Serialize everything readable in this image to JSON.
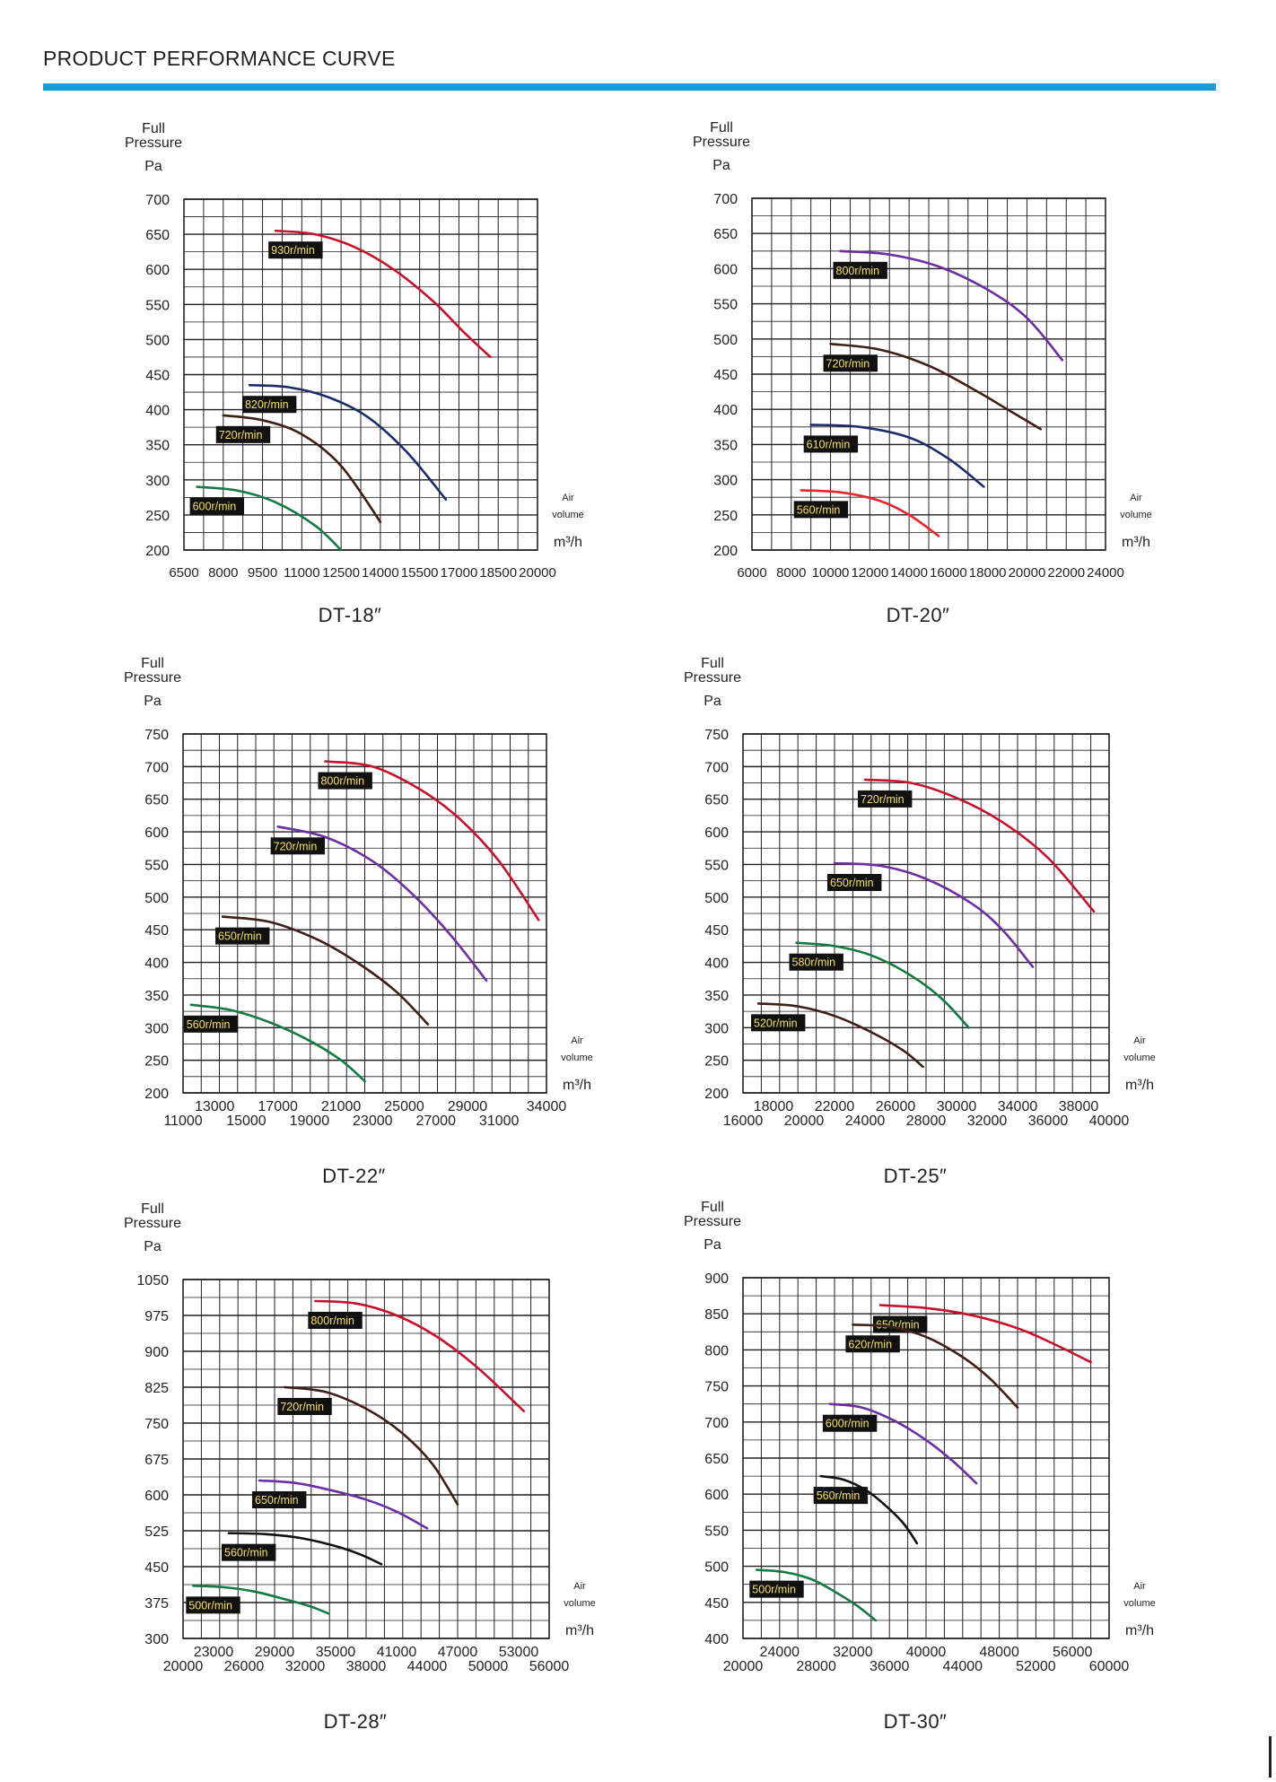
{
  "header": {
    "title": "PRODUCT PERFORMANCE CURVE",
    "rule_color": "#1f9ad6"
  },
  "labels": {
    "y_title_line1": "Full",
    "y_title_line2": "Pressure",
    "y_unit": "Pa",
    "x_title_line1": "Air",
    "x_title_line2": "volume",
    "x_unit": "m³/h"
  },
  "chart_data": [
    {
      "type": "line",
      "title": "DT-18″",
      "ylabel": "Full Pressure Pa",
      "xlabel": "Air volume m³/h",
      "ylim": [
        200,
        700
      ],
      "yticks": [
        200,
        250,
        300,
        350,
        400,
        450,
        500,
        550,
        600,
        650,
        700
      ],
      "xlim": [
        6500,
        20000
      ],
      "xticks_row1": [
        6500,
        8000,
        9500,
        11000,
        12500,
        14000,
        15500,
        17000,
        18500,
        20000
      ],
      "xticks_row2": [],
      "grid": true,
      "series": [
        {
          "name": "930r/min",
          "color": "#c8102e",
          "x": [
            10000,
            11500,
            13000,
            14500,
            16000,
            17200,
            18200
          ],
          "y": [
            655,
            650,
            632,
            600,
            555,
            510,
            475
          ]
        },
        {
          "name": "820r/min",
          "color": "#1f2a6b",
          "x": [
            9000,
            10500,
            12000,
            13500,
            15000,
            16500
          ],
          "y": [
            435,
            432,
            418,
            390,
            340,
            272
          ]
        },
        {
          "name": "720r/min",
          "color": "#3d1f1a",
          "x": [
            8000,
            9500,
            11000,
            12500,
            14000
          ],
          "y": [
            392,
            385,
            365,
            320,
            240
          ]
        },
        {
          "name": "600r/min",
          "color": "#137a45",
          "x": [
            7000,
            8500,
            10000,
            11500,
            12500
          ],
          "y": [
            290,
            285,
            268,
            235,
            200
          ]
        }
      ]
    },
    {
      "type": "line",
      "title": "DT-20″",
      "ylabel": "Full Pressure Pa",
      "xlabel": "Air volume m³/h",
      "ylim": [
        200,
        700
      ],
      "yticks": [
        200,
        250,
        300,
        350,
        400,
        450,
        500,
        550,
        600,
        650,
        700
      ],
      "xlim": [
        6000,
        24000
      ],
      "xticks_row1": [
        6000,
        8000,
        10000,
        12000,
        14000,
        16000,
        18000,
        20000,
        22000,
        24000
      ],
      "xticks_row2": [],
      "grid": true,
      "series": [
        {
          "name": "800r/min",
          "color": "#6a2fa0",
          "x": [
            10500,
            13000,
            15500,
            18000,
            20000,
            21800
          ],
          "y": [
            625,
            620,
            603,
            570,
            530,
            470
          ]
        },
        {
          "name": "720r/min",
          "color": "#3d1f1a",
          "x": [
            10000,
            12500,
            15000,
            17500,
            19000,
            20700
          ],
          "y": [
            493,
            485,
            462,
            425,
            400,
            372
          ]
        },
        {
          "name": "610r/min",
          "color": "#1f2a6b",
          "x": [
            9000,
            11500,
            14000,
            16000,
            17800
          ],
          "y": [
            378,
            375,
            360,
            330,
            290
          ]
        },
        {
          "name": "560r/min",
          "color": "#e8232a",
          "x": [
            8500,
            10500,
            12500,
            14000,
            15500
          ],
          "y": [
            285,
            282,
            270,
            250,
            220
          ]
        }
      ]
    },
    {
      "type": "line",
      "title": "DT-22″",
      "ylabel": "Full Pressure Pa",
      "xlabel": "Air volume m³/h",
      "ylim": [
        200,
        750
      ],
      "yticks": [
        200,
        250,
        300,
        350,
        400,
        450,
        500,
        550,
        600,
        650,
        700,
        750
      ],
      "xlim": [
        11000,
        34000
      ],
      "xticks_row1": [
        13000,
        17000,
        21000,
        25000,
        29000,
        34000
      ],
      "xticks_row2": [
        11000,
        15000,
        19000,
        23000,
        27000,
        31000
      ],
      "grid": true,
      "series": [
        {
          "name": "800r/min",
          "color": "#c8102e",
          "x": [
            20000,
            23000,
            26000,
            28500,
            31000,
            33500
          ],
          "y": [
            708,
            700,
            665,
            620,
            555,
            465
          ]
        },
        {
          "name": "720r/min",
          "color": "#6a2fa0",
          "x": [
            17000,
            20000,
            23000,
            25500,
            28000,
            30200
          ],
          "y": [
            608,
            592,
            555,
            505,
            440,
            372
          ]
        },
        {
          "name": "650r/min",
          "color": "#3d1f1a",
          "x": [
            13500,
            16500,
            19500,
            22000,
            24500,
            26500
          ],
          "y": [
            470,
            462,
            435,
            400,
            355,
            305
          ]
        },
        {
          "name": "560r/min",
          "color": "#137a45",
          "x": [
            11500,
            14000,
            16500,
            19000,
            21000,
            22500
          ],
          "y": [
            335,
            327,
            308,
            280,
            250,
            218
          ]
        }
      ]
    },
    {
      "type": "line",
      "title": "DT-25″",
      "ylabel": "Full Pressure Pa",
      "xlabel": "Air volume m³/h",
      "ylim": [
        200,
        750
      ],
      "yticks": [
        200,
        250,
        300,
        350,
        400,
        450,
        500,
        550,
        600,
        650,
        700,
        750
      ],
      "xlim": [
        16000,
        40000
      ],
      "xticks_row1": [
        18000,
        22000,
        26000,
        30000,
        34000,
        38000
      ],
      "xticks_row2": [
        16000,
        20000,
        24000,
        28000,
        32000,
        36000,
        40000
      ],
      "grid": true,
      "series": [
        {
          "name": "720r/min",
          "color": "#c8102e",
          "x": [
            24000,
            27000,
            30000,
            33000,
            36000,
            39000
          ],
          "y": [
            680,
            675,
            652,
            615,
            560,
            478
          ]
        },
        {
          "name": "650r/min",
          "color": "#6a2fa0",
          "x": [
            22000,
            25000,
            28000,
            31000,
            33000,
            35000
          ],
          "y": [
            552,
            548,
            528,
            490,
            450,
            393
          ]
        },
        {
          "name": "580r/min",
          "color": "#137a45",
          "x": [
            19500,
            22000,
            24500,
            27000,
            29000,
            30800
          ],
          "y": [
            430,
            425,
            410,
            380,
            345,
            300
          ]
        },
        {
          "name": "520r/min",
          "color": "#3d1f1a",
          "x": [
            17000,
            19500,
            22000,
            24500,
            26500,
            27800
          ],
          "y": [
            337,
            333,
            318,
            292,
            265,
            240
          ]
        }
      ]
    },
    {
      "type": "line",
      "title": "DT-28″",
      "ylabel": "Full Pressure Pa",
      "xlabel": "Air volume m³/h",
      "ylim": [
        300,
        1050
      ],
      "yticks": [
        300,
        375,
        450,
        525,
        600,
        675,
        750,
        825,
        900,
        975,
        1050
      ],
      "xlim": [
        20000,
        56000
      ],
      "xticks_row1": [
        23000,
        29000,
        35000,
        41000,
        47000,
        53000
      ],
      "xticks_row2": [
        20000,
        26000,
        32000,
        38000,
        44000,
        50000,
        56000
      ],
      "grid": true,
      "series": [
        {
          "name": "800r/min",
          "color": "#c8102e",
          "x": [
            33000,
            37000,
            41000,
            45000,
            49000,
            53500
          ],
          "y": [
            1005,
            1000,
            975,
            930,
            865,
            775
          ]
        },
        {
          "name": "720r/min",
          "color": "#3d1f1a",
          "x": [
            30000,
            34000,
            38000,
            41500,
            44500,
            47000
          ],
          "y": [
            825,
            815,
            780,
            730,
            665,
            580
          ]
        },
        {
          "name": "650r/min",
          "color": "#6a2fa0",
          "x": [
            27500,
            31000,
            34500,
            38000,
            41000,
            44000
          ],
          "y": [
            630,
            625,
            610,
            590,
            565,
            530
          ]
        },
        {
          "name": "560r/min",
          "color": "#111111",
          "x": [
            24500,
            28000,
            31500,
            35000,
            37500,
            39500
          ],
          "y": [
            520,
            518,
            510,
            493,
            475,
            455
          ]
        },
        {
          "name": "500r/min",
          "color": "#137a45",
          "x": [
            21000,
            24000,
            27000,
            30000,
            32500,
            34300
          ],
          "y": [
            410,
            407,
            398,
            382,
            367,
            352
          ]
        }
      ]
    },
    {
      "type": "line",
      "title": "DT-30″",
      "ylabel": "Full Pressure Pa",
      "xlabel": "Air volume m³/h",
      "ylim": [
        400,
        900
      ],
      "yticks": [
        400,
        450,
        500,
        550,
        600,
        650,
        700,
        750,
        800,
        850,
        900
      ],
      "xlim": [
        20000,
        60000
      ],
      "xticks_row1": [
        24000,
        32000,
        40000,
        48000,
        56000
      ],
      "xticks_row2": [
        20000,
        28000,
        36000,
        44000,
        52000,
        60000
      ],
      "grid": true,
      "series": [
        {
          "name": "650r/min",
          "color": "#c8102e",
          "x": [
            35000,
            40000,
            45000,
            50000,
            54000,
            58000
          ],
          "y": [
            862,
            858,
            848,
            830,
            808,
            783
          ]
        },
        {
          "name": "620r/min",
          "color": "#3d1f1a",
          "x": [
            32000,
            36000,
            40000,
            44000,
            47000,
            50000
          ],
          "y": [
            835,
            832,
            818,
            790,
            760,
            720
          ]
        },
        {
          "name": "600r/min",
          "color": "#6a2fa0",
          "x": [
            29500,
            33000,
            36500,
            40000,
            43000,
            45500
          ],
          "y": [
            725,
            720,
            702,
            675,
            645,
            615
          ]
        },
        {
          "name": "560r/min",
          "color": "#111111",
          "x": [
            28500,
            31000,
            33500,
            35500,
            37500,
            39000
          ],
          "y": [
            625,
            620,
            605,
            585,
            560,
            532
          ]
        },
        {
          "name": "500r/min",
          "color": "#137a45",
          "x": [
            21500,
            24500,
            27500,
            30000,
            32500,
            34500
          ],
          "y": [
            495,
            492,
            482,
            465,
            445,
            425
          ]
        }
      ]
    }
  ]
}
